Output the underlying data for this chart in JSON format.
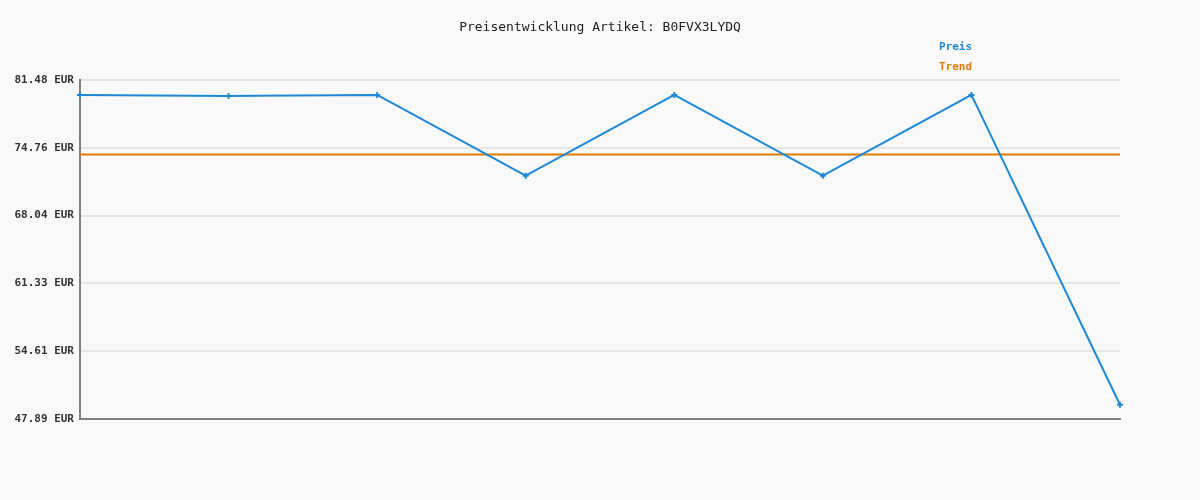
{
  "chart_data": {
    "type": "line",
    "title": "Preisentwicklung Artikel: B0FVX3LYDQ",
    "categories": [
      null,
      null,
      null,
      null,
      null,
      null,
      null,
      null
    ],
    "series": [
      {
        "name": "Preis",
        "color": "#1f88d6",
        "marker": "cross",
        "values": [
          80.0,
          79.9,
          80.0,
          72.0,
          80.0,
          72.0,
          80.0,
          49.3
        ]
      },
      {
        "name": "Trend",
        "color": "#df7b00",
        "marker": "none",
        "values": [
          74.1,
          74.1,
          74.1,
          74.1,
          74.1,
          74.1,
          74.1,
          74.1
        ]
      }
    ],
    "ylim": [
      47.89,
      81.48
    ],
    "yticks": [
      {
        "value": 47.89,
        "label": "47.89 EUR"
      },
      {
        "value": 54.61,
        "label": "54.61 EUR"
      },
      {
        "value": 61.33,
        "label": "61.33 EUR"
      },
      {
        "value": 68.04,
        "label": "68.04 EUR"
      },
      {
        "value": 74.76,
        "label": "74.76 EUR"
      },
      {
        "value": 81.48,
        "label": "81.48 EUR"
      }
    ],
    "grid": "y",
    "legend": "top right",
    "tick_labels": "y",
    "line_style": "solid"
  }
}
